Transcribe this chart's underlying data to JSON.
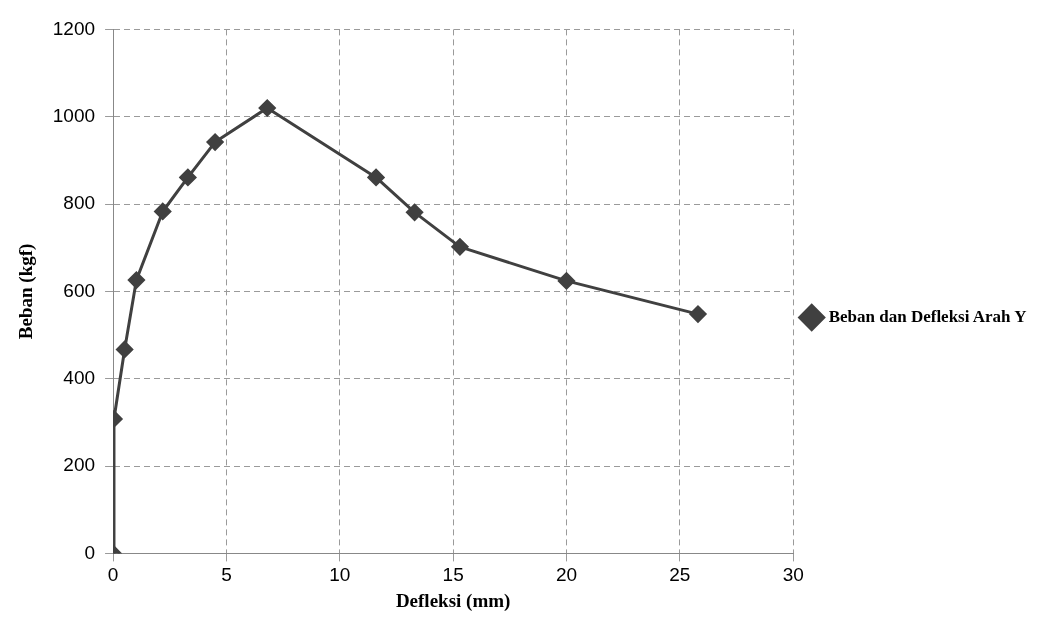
{
  "chart_data": {
    "type": "line",
    "xlabel": "Defleksi (mm)",
    "ylabel": "Beban (kgf)",
    "series": [
      {
        "name": "Beban dan Defleksi Arah Y",
        "color": "#404040",
        "x": [
          0,
          0.04,
          0.51,
          1.03,
          2.19,
          3.3,
          4.5,
          6.8,
          11.6,
          13.3,
          15.3,
          20.0,
          25.8
        ],
        "values": [
          0,
          308,
          467,
          626,
          783,
          861,
          942,
          1020,
          861,
          781,
          702,
          624,
          548
        ]
      }
    ],
    "xlim": [
      0,
      30
    ],
    "xticks": [
      0,
      5,
      10,
      15,
      20,
      25,
      30
    ],
    "ylim": [
      0,
      1200
    ],
    "yticks": [
      0,
      200,
      400,
      600,
      800,
      1000,
      1200
    ],
    "grid": true,
    "legend": "right",
    "marker": "diamond",
    "line_style": "solid"
  }
}
